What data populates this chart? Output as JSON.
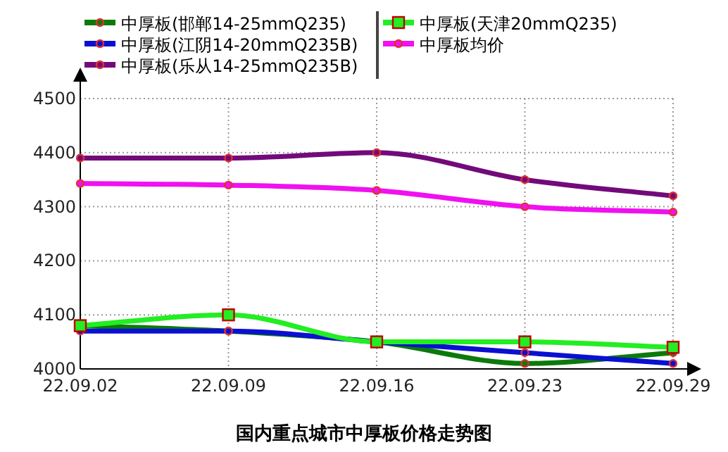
{
  "chart_data": {
    "type": "line",
    "title": "国内重点城市中厚板价格走势图",
    "categories": [
      "22.09.02",
      "22.09.09",
      "22.09.16",
      "22.09.23",
      "22.09.29"
    ],
    "series": [
      {
        "name": "中厚板(邯郸14-25mmQ235)",
        "color": "#0b7a0b",
        "values": [
          4080,
          4070,
          4050,
          4010,
          4030
        ]
      },
      {
        "name": "中厚板(江阴14-20mmQ235B)",
        "color": "#0a10d0",
        "values": [
          4070,
          4070,
          4050,
          4030,
          4010
        ]
      },
      {
        "name": "中厚板(乐从14-25mmQ235B)",
        "color": "#730a7a",
        "values": [
          4390,
          4390,
          4400,
          4350,
          4320
        ]
      },
      {
        "name": "中厚板(天津20mmQ235)",
        "color": "#22ee22",
        "marker": "square",
        "values": [
          4080,
          4100,
          4050,
          4050,
          4040
        ]
      },
      {
        "name": "中厚板均价",
        "color": "#f010f0",
        "values": [
          4343,
          4340,
          4330,
          4300,
          4290
        ]
      }
    ],
    "ylim": [
      4000,
      4500
    ],
    "yticks": [
      4000,
      4100,
      4200,
      4300,
      4400,
      4500
    ],
    "grid": true,
    "legend": "top",
    "marker": "circle",
    "line_style": "solid"
  }
}
